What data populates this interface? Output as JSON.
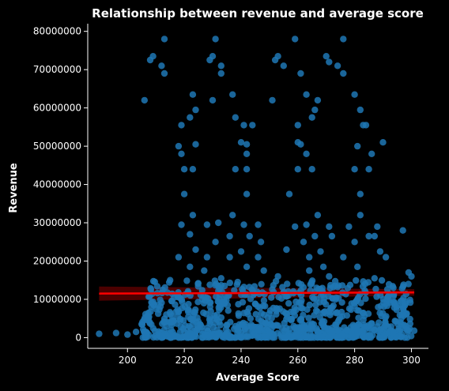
{
  "chart_data": {
    "type": "scatter",
    "title": "Relationship between revenue and average score",
    "xlabel": "Average Score",
    "ylabel": "Revenue",
    "xlim": [
      186,
      306
    ],
    "ylim": [
      -2800000,
      82000000
    ],
    "x_ticks": [
      200,
      220,
      240,
      260,
      280,
      300
    ],
    "y_ticks": [
      0,
      10000000,
      20000000,
      30000000,
      40000000,
      50000000,
      60000000,
      70000000,
      80000000
    ],
    "x_tick_labels": [
      "200",
      "220",
      "240",
      "260",
      "280",
      "300"
    ],
    "y_tick_labels": [
      "0",
      "10000000",
      "20000000",
      "30000000",
      "40000000",
      "50000000",
      "60000000",
      "70000000",
      "80000000"
    ],
    "grid": false,
    "series": [
      {
        "marker_color": "#1f77b4",
        "points": [
          [
            213,
            78000000
          ],
          [
            231,
            78000000
          ],
          [
            259,
            78000000
          ],
          [
            276,
            78000000
          ],
          [
            209,
            73500000
          ],
          [
            230,
            73500000
          ],
          [
            253,
            73500000
          ],
          [
            270,
            73500000
          ],
          [
            208,
            72500000
          ],
          [
            229,
            72500000
          ],
          [
            252,
            72500000
          ],
          [
            271,
            72000000
          ],
          [
            212,
            71000000
          ],
          [
            233,
            71000000
          ],
          [
            255,
            71000000
          ],
          [
            274,
            71000000
          ],
          [
            213,
            69000000
          ],
          [
            233,
            69000000
          ],
          [
            261,
            69000000
          ],
          [
            276,
            69000000
          ],
          [
            206,
            62000000
          ],
          [
            230,
            62000000
          ],
          [
            251,
            62000000
          ],
          [
            267,
            62000000
          ],
          [
            223,
            63500000
          ],
          [
            237,
            63500000
          ],
          [
            263,
            63500000
          ],
          [
            280,
            63500000
          ],
          [
            224,
            59500000
          ],
          [
            266,
            59500000
          ],
          [
            282,
            59500000
          ],
          [
            238,
            57500000
          ],
          [
            222,
            57500000
          ],
          [
            265,
            57500000
          ],
          [
            219,
            55500000
          ],
          [
            241,
            55500000
          ],
          [
            244,
            55500000
          ],
          [
            260,
            55500000
          ],
          [
            283,
            55500000
          ],
          [
            284,
            55500000
          ],
          [
            218,
            50000000
          ],
          [
            224,
            50500000
          ],
          [
            240,
            51000000
          ],
          [
            242,
            50500000
          ],
          [
            260,
            51000000
          ],
          [
            261,
            50500000
          ],
          [
            281,
            50000000
          ],
          [
            290,
            51000000
          ],
          [
            219,
            48000000
          ],
          [
            242,
            48000000
          ],
          [
            263,
            48000000
          ],
          [
            286,
            48000000
          ],
          [
            220,
            44000000
          ],
          [
            223,
            44000000
          ],
          [
            238,
            44000000
          ],
          [
            242,
            44000000
          ],
          [
            260,
            44000000
          ],
          [
            265,
            44000000
          ],
          [
            280,
            44000000
          ],
          [
            285,
            44000000
          ],
          [
            220,
            37500000
          ],
          [
            242,
            37500000
          ],
          [
            257,
            37500000
          ],
          [
            282,
            37500000
          ],
          [
            223,
            32000000
          ],
          [
            237,
            32000000
          ],
          [
            267,
            32000000
          ],
          [
            282,
            32000000
          ],
          [
            219,
            29500000
          ],
          [
            228,
            29500000
          ],
          [
            232,
            30000000
          ],
          [
            241,
            29500000
          ],
          [
            246,
            29500000
          ],
          [
            259,
            29000000
          ],
          [
            263,
            29500000
          ],
          [
            271,
            29000000
          ],
          [
            278,
            29000000
          ],
          [
            288,
            29000000
          ],
          [
            297,
            28000000
          ],
          [
            222,
            27000000
          ],
          [
            236,
            26500000
          ],
          [
            243,
            26500000
          ],
          [
            266,
            26500000
          ],
          [
            272,
            26500000
          ],
          [
            285,
            26500000
          ],
          [
            287,
            26500000
          ],
          [
            231,
            25000000
          ],
          [
            247,
            25000000
          ],
          [
            262,
            25000000
          ],
          [
            280,
            25000000
          ],
          [
            224,
            23000000
          ],
          [
            240,
            22500000
          ],
          [
            256,
            23000000
          ],
          [
            268,
            22500000
          ],
          [
            289,
            22500000
          ],
          [
            218,
            21000000
          ],
          [
            228,
            21000000
          ],
          [
            236,
            21000000
          ],
          [
            246,
            21000000
          ],
          [
            264,
            21000000
          ],
          [
            276,
            21000000
          ],
          [
            291,
            21000000
          ],
          [
            222,
            18500000
          ],
          [
            242,
            18500000
          ],
          [
            269,
            18500000
          ],
          [
            281,
            18500000
          ],
          [
            227,
            17500000
          ],
          [
            248,
            17500000
          ],
          [
            264,
            17500000
          ],
          [
            299,
            17000000
          ],
          [
            215,
            15000000
          ],
          [
            233,
            15500000
          ],
          [
            253,
            16000000
          ],
          [
            271,
            16000000
          ],
          [
            287,
            15500000
          ],
          [
            300,
            16000000
          ],
          [
            190,
            1000000
          ],
          [
            196,
            1200000
          ],
          [
            200,
            800000
          ],
          [
            203,
            1500000
          ],
          [
            205,
            3500000
          ],
          [
            298,
            3000000
          ],
          [
            301,
            1800000
          ]
        ]
      }
    ],
    "regression_line": {
      "color": "#ff0000",
      "x": [
        190,
        301
      ],
      "y": [
        11500000,
        11800000
      ]
    }
  }
}
